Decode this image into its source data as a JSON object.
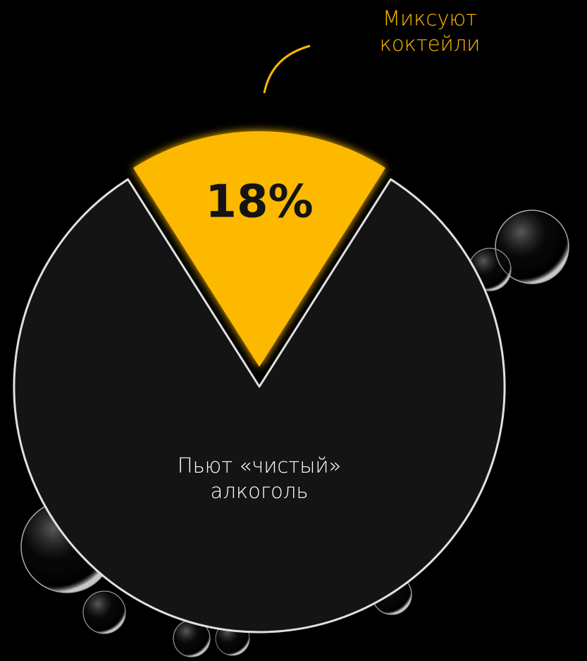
{
  "chart_data": {
    "type": "pie",
    "categories": [
      "Миксуют коктейли",
      "Пьют «чистый» алкоголь"
    ],
    "values": [
      18,
      82
    ],
    "value_labels": [
      "18%",
      null
    ],
    "colors": [
      "#fdb900",
      "#141414"
    ]
  }
}
